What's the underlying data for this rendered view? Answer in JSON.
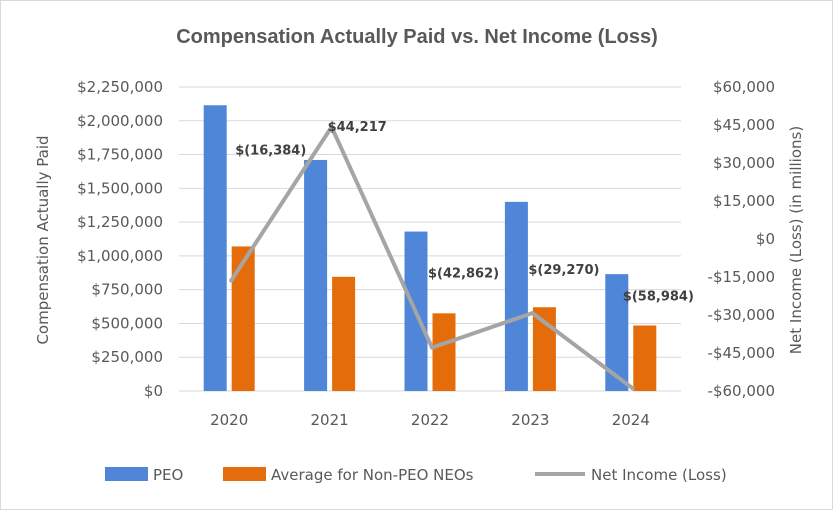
{
  "chart_data": {
    "type": "bar",
    "title": "Compensation Actually Paid vs. Net Income (Loss)",
    "categories": [
      "2020",
      "2021",
      "2022",
      "2023",
      "2024"
    ],
    "ylabel": "Compensation Actually Paid",
    "ylabel_right": "Net Income (Loss) (in millions)",
    "ylim": [
      0,
      2250000
    ],
    "ylim_right": [
      -60000,
      60000
    ],
    "yticks": [
      "$0",
      "$250,000",
      "$500,000",
      "$750,000",
      "$1,000,000",
      "$1,250,000",
      "$1,500,000",
      "$1,750,000",
      "$2,000,000",
      "$2,250,000"
    ],
    "yticks_right": [
      "-$60,000",
      "-$45,000",
      "-$30,000",
      "-$15,000",
      "$0",
      "$15,000",
      "$30,000",
      "$45,000",
      "$60,000"
    ],
    "grid": true,
    "legend_position": "bottom",
    "series": [
      {
        "name": "PEO",
        "kind": "bar",
        "axis": "left",
        "color": "#4f86d8",
        "values": [
          2115000,
          1710000,
          1180000,
          1400000,
          865000
        ]
      },
      {
        "name": "Average for Non-PEO NEOs",
        "kind": "bar",
        "axis": "left",
        "color": "#e46c0a",
        "values": [
          1070000,
          845000,
          575000,
          620000,
          485000
        ]
      },
      {
        "name": "Net Income (Loss)",
        "kind": "line",
        "axis": "right",
        "color": "#a5a5a5",
        "values": [
          -16384,
          44217,
          -42862,
          -29270,
          -58984
        ],
        "labels": [
          "$(16,384)",
          "$44,217",
          "$(42,862)",
          "$(29,270)",
          "$(58,984)"
        ]
      }
    ]
  }
}
